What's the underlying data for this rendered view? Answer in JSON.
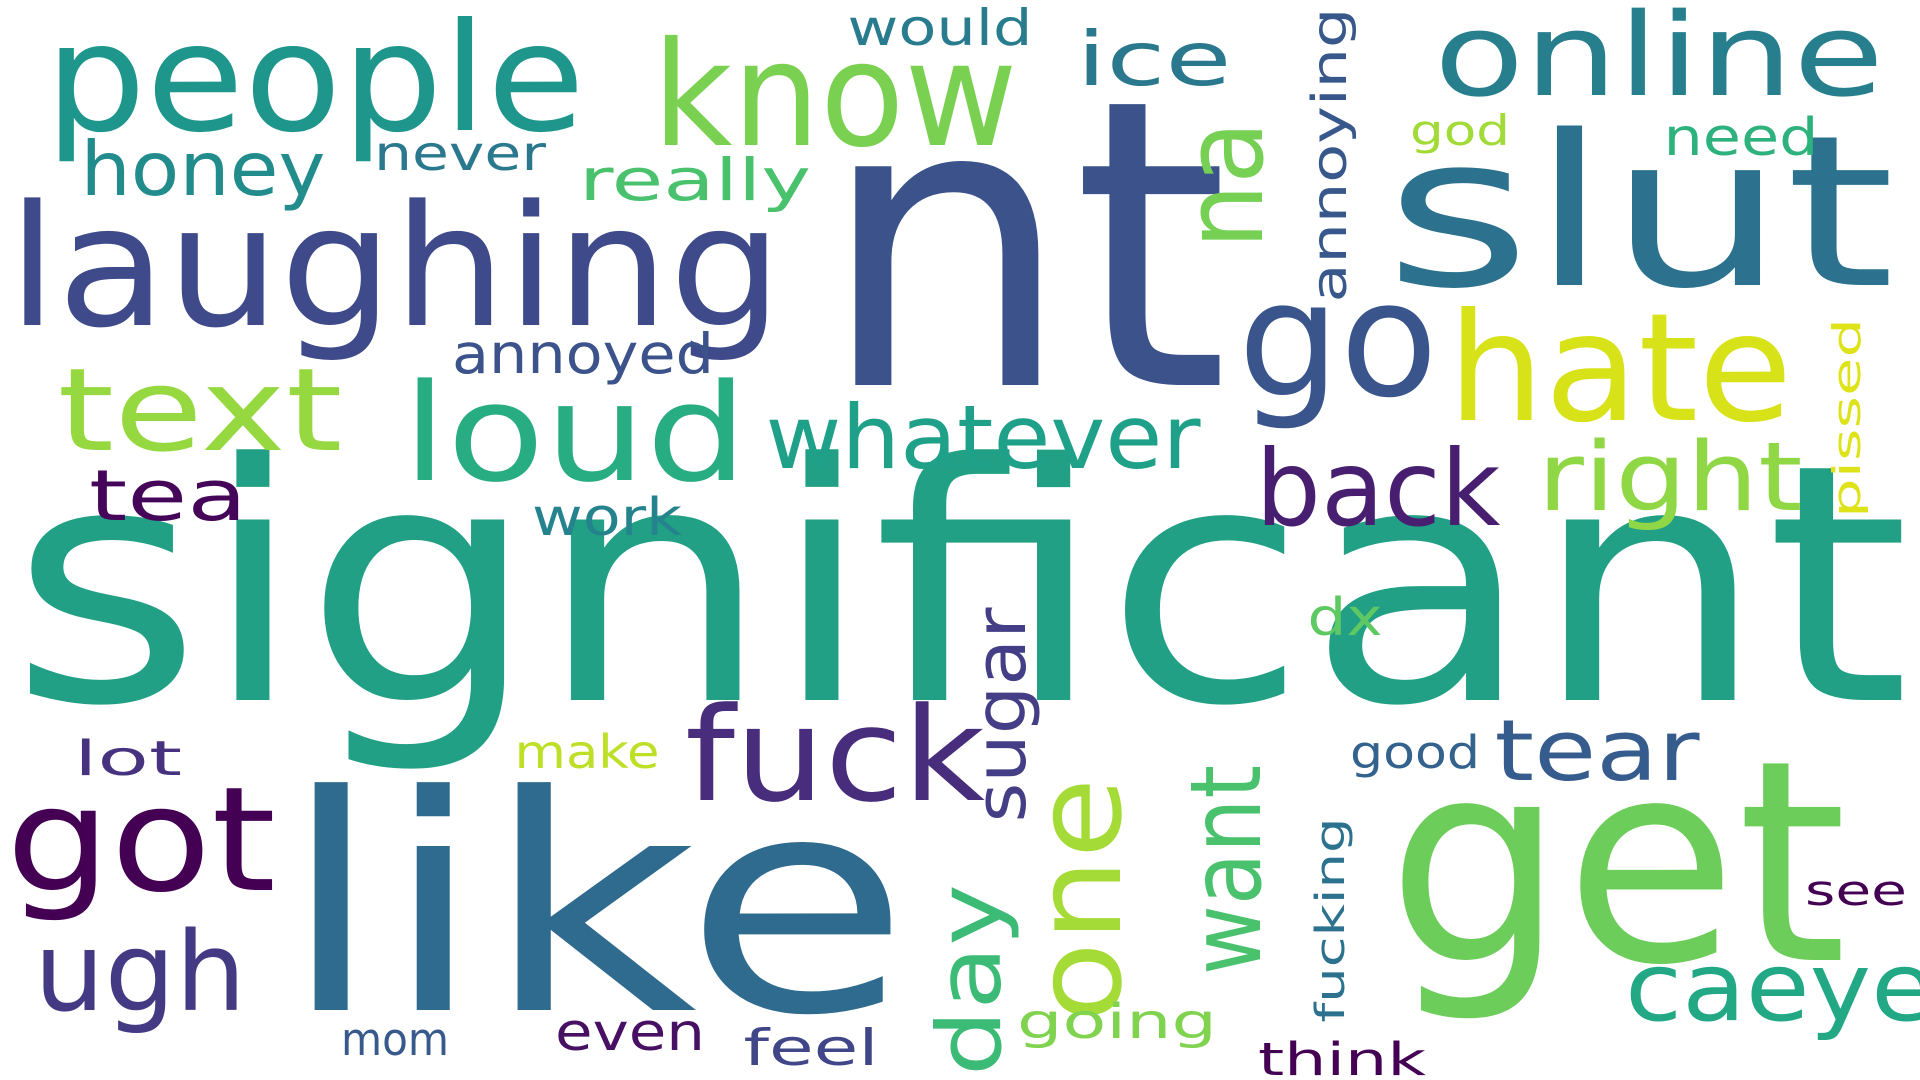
{
  "words": [
    {
      "text": "significant",
      "color": "#21a085"
    },
    {
      "text": "nt",
      "color": "#3b528b"
    },
    {
      "text": "like",
      "color": "#2f6b8e"
    },
    {
      "text": "get",
      "color": "#6ccd5a"
    },
    {
      "text": "slut",
      "color": "#2c728e"
    },
    {
      "text": "laughing",
      "color": "#3e4a89"
    },
    {
      "text": "people",
      "color": "#1f968b"
    },
    {
      "text": "know",
      "color": "#7ad151"
    },
    {
      "text": "online",
      "color": "#277f8e"
    },
    {
      "text": "hate",
      "color": "#d8e219"
    },
    {
      "text": "go",
      "color": "#3a548c"
    },
    {
      "text": "loud",
      "color": "#27ad81"
    },
    {
      "text": "text",
      "color": "#95d840"
    },
    {
      "text": "got",
      "color": "#440154"
    },
    {
      "text": "fuck",
      "color": "#472d7b"
    },
    {
      "text": "one",
      "color": "#a5db36"
    },
    {
      "text": "ugh",
      "color": "#443a83"
    },
    {
      "text": "back",
      "color": "#481f70"
    },
    {
      "text": "right",
      "color": "#8fd744"
    },
    {
      "text": "whatever",
      "color": "#1fa088"
    },
    {
      "text": "na",
      "color": "#75d054"
    },
    {
      "text": "want",
      "color": "#4ac16d"
    },
    {
      "text": "day",
      "color": "#3bbb75"
    },
    {
      "text": "caeye",
      "color": "#22a884"
    },
    {
      "text": "tear",
      "color": "#365c8d"
    },
    {
      "text": "sugar",
      "color": "#433e85"
    },
    {
      "text": "tea",
      "color": "#450559"
    },
    {
      "text": "honey",
      "color": "#228c8d"
    },
    {
      "text": "ice",
      "color": "#2a788e"
    },
    {
      "text": "annoying",
      "color": "#38588c"
    },
    {
      "text": "really",
      "color": "#4ac16d"
    },
    {
      "text": "annoyed",
      "color": "#3b528b"
    },
    {
      "text": "need",
      "color": "#2db27d"
    },
    {
      "text": "never",
      "color": "#2a788e"
    },
    {
      "text": "would",
      "color": "#287c8e"
    },
    {
      "text": "god",
      "color": "#a2da37"
    },
    {
      "text": "pissed",
      "color": "#dde318"
    },
    {
      "text": "work",
      "color": "#25838e"
    },
    {
      "text": "dx",
      "color": "#5ec962"
    },
    {
      "text": "fucking",
      "color": "#2c728e"
    },
    {
      "text": "good",
      "color": "#33638d"
    },
    {
      "text": "make",
      "color": "#bddf26"
    },
    {
      "text": "lot",
      "color": "#46327e"
    },
    {
      "text": "going",
      "color": "#7fd34e"
    },
    {
      "text": "see",
      "color": "#440154"
    },
    {
      "text": "mom",
      "color": "#38598c"
    },
    {
      "text": "even",
      "color": "#471063"
    },
    {
      "text": "feel",
      "color": "#404688"
    },
    {
      "text": "think",
      "color": "#440154"
    }
  ]
}
